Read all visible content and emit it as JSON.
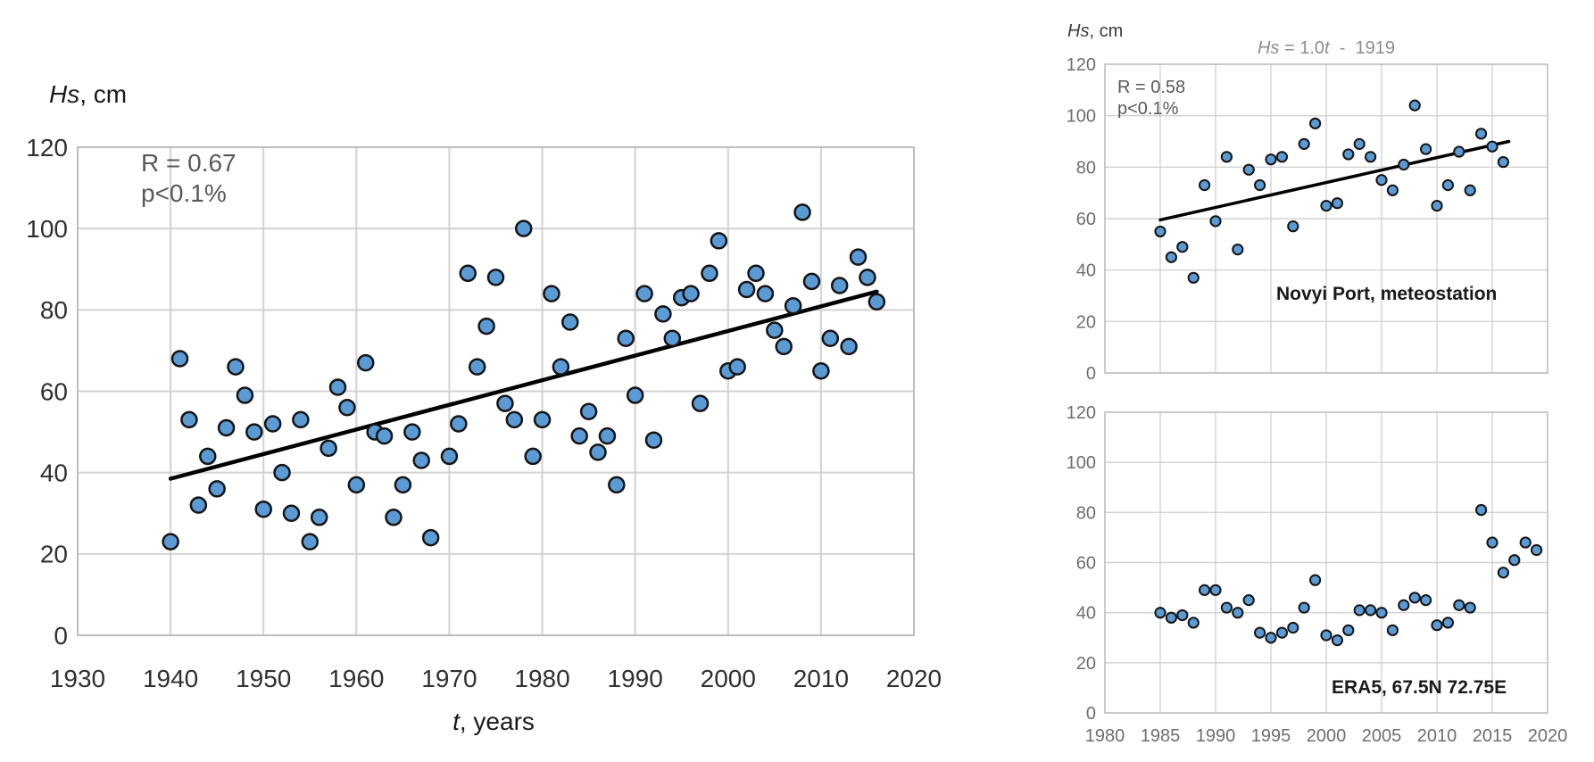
{
  "palette": {
    "background": "#ffffff",
    "marker_fill": "#5b9bd5",
    "marker_stroke": "#141414",
    "grid_color": "#d2d2d2",
    "border_color": "#bdbdbd",
    "trend_color": "#000000",
    "tick_color_left": "#303030",
    "tick_color_right": "#6e6e6e",
    "annotation_color": "#595959",
    "equation_color": "#8c8c8c",
    "label_color": "#1a1a1a"
  },
  "chart_data": [
    {
      "type": "scatter",
      "name": "novyi-port-full-series",
      "ylabel_italic": "Hs",
      "ylabel_rest": ", cm",
      "xlabel_italic": "t",
      "xlabel_rest": ", years",
      "annotation": [
        "R = 0.67",
        "p<0.1%"
      ],
      "x_tick_labels": [
        "1930",
        "1940",
        "1950",
        "1960",
        "1970",
        "1980",
        "1990",
        "2000",
        "2010",
        "2020"
      ],
      "y_tick_labels": [
        "120",
        "100",
        "80",
        "60",
        "40",
        "20",
        "0"
      ],
      "xlim": [
        1930,
        2020
      ],
      "ylim": [
        0,
        120
      ],
      "grid": true,
      "legend": "none",
      "trendline": {
        "x1": 1940,
        "y1": 38.5,
        "x2": 2016,
        "y2": 84.5
      },
      "series": [
        {
          "name": "Novyi Port annual Hs",
          "x": [
            1940,
            1941,
            1942,
            1943,
            1944,
            1945,
            1946,
            1947,
            1948,
            1949,
            1950,
            1951,
            1952,
            1953,
            1954,
            1955,
            1956,
            1957,
            1958,
            1959,
            1960,
            1961,
            1962,
            1963,
            1964,
            1965,
            1966,
            1967,
            1968,
            1970,
            1971,
            1972,
            1973,
            1974,
            1975,
            1976,
            1977,
            1978,
            1979,
            1980,
            1981,
            1982,
            1983,
            1984,
            1985,
            1986,
            1987,
            1988,
            1989,
            1990,
            1991,
            1992,
            1993,
            1994,
            1995,
            1996,
            1997,
            1998,
            1999,
            2000,
            2001,
            2002,
            2003,
            2004,
            2005,
            2006,
            2007,
            2008,
            2009,
            2010,
            2011,
            2012,
            2013,
            2014,
            2015,
            2016
          ],
          "y": [
            23,
            68,
            53,
            32,
            44,
            36,
            51,
            66,
            59,
            50,
            31,
            52,
            40,
            30,
            53,
            23,
            29,
            46,
            61,
            56,
            37,
            67,
            50,
            49,
            29,
            37,
            50,
            43,
            24,
            44,
            52,
            89,
            66,
            76,
            88,
            57,
            53,
            100,
            44,
            53,
            84,
            66,
            77,
            49,
            55,
            45,
            49,
            37,
            73,
            59,
            84,
            48,
            79,
            73,
            83,
            84,
            57,
            89,
            97,
            65,
            66,
            85,
            89,
            84,
            75,
            71,
            81,
            104,
            87,
            65,
            73,
            86,
            71,
            93,
            88,
            82
          ]
        }
      ]
    },
    {
      "type": "scatter",
      "name": "novyi-port-recent-series",
      "title_equation_parts": [
        "Hs",
        " = 1.0",
        "t",
        "  -  1919"
      ],
      "ylabel_italic": "Hs",
      "ylabel_rest": ", cm",
      "annotation": [
        "R = 0.58",
        "p<0.1%"
      ],
      "station_label": "Novyi Port, meteostation",
      "y_tick_labels": [
        "120",
        "100",
        "80",
        "60",
        "40",
        "20",
        "0"
      ],
      "xlim": [
        1980,
        2020
      ],
      "ylim": [
        0,
        120
      ],
      "grid": true,
      "legend": "none",
      "trendline": {
        "x1": 1985,
        "y1": 59.5,
        "x2": 2016.5,
        "y2": 90
      },
      "series": [
        {
          "name": "Novyi Port annual Hs 1985-2016",
          "x": [
            1985,
            1986,
            1987,
            1988,
            1989,
            1990,
            1991,
            1992,
            1993,
            1994,
            1995,
            1996,
            1997,
            1998,
            1999,
            2000,
            2001,
            2002,
            2003,
            2004,
            2005,
            2006,
            2007,
            2008,
            2009,
            2010,
            2011,
            2012,
            2013,
            2014,
            2015,
            2016
          ],
          "y": [
            55,
            45,
            49,
            37,
            73,
            59,
            84,
            48,
            79,
            73,
            83,
            84,
            57,
            89,
            97,
            65,
            66,
            85,
            89,
            84,
            75,
            71,
            81,
            104,
            87,
            65,
            73,
            86,
            71,
            93,
            88,
            82
          ]
        }
      ]
    },
    {
      "type": "scatter",
      "name": "era5-series",
      "station_label": "ERA5, 67.5N 72.75E",
      "x_tick_labels": [
        "1980",
        "1985",
        "1990",
        "1995",
        "2000",
        "2005",
        "2010",
        "2015",
        "2020"
      ],
      "y_tick_labels": [
        "120",
        "100",
        "80",
        "60",
        "40",
        "20",
        "0"
      ],
      "xlim": [
        1980,
        2020
      ],
      "ylim": [
        0,
        120
      ],
      "grid": true,
      "legend": "none",
      "series": [
        {
          "name": "ERA5 annual Hs 1985-2019",
          "x": [
            1985,
            1986,
            1987,
            1988,
            1989,
            1990,
            1991,
            1992,
            1993,
            1994,
            1995,
            1996,
            1997,
            1998,
            1999,
            2000,
            2001,
            2002,
            2003,
            2004,
            2005,
            2006,
            2007,
            2008,
            2009,
            2010,
            2011,
            2012,
            2013,
            2014,
            2015,
            2016,
            2017,
            2018,
            2019
          ],
          "y": [
            40,
            38,
            39,
            36,
            49,
            49,
            42,
            40,
            45,
            32,
            30,
            32,
            34,
            42,
            53,
            31,
            29,
            33,
            41,
            41,
            40,
            33,
            43,
            46,
            45,
            35,
            36,
            43,
            42,
            81,
            68,
            56,
            61,
            68,
            65
          ]
        }
      ]
    }
  ]
}
